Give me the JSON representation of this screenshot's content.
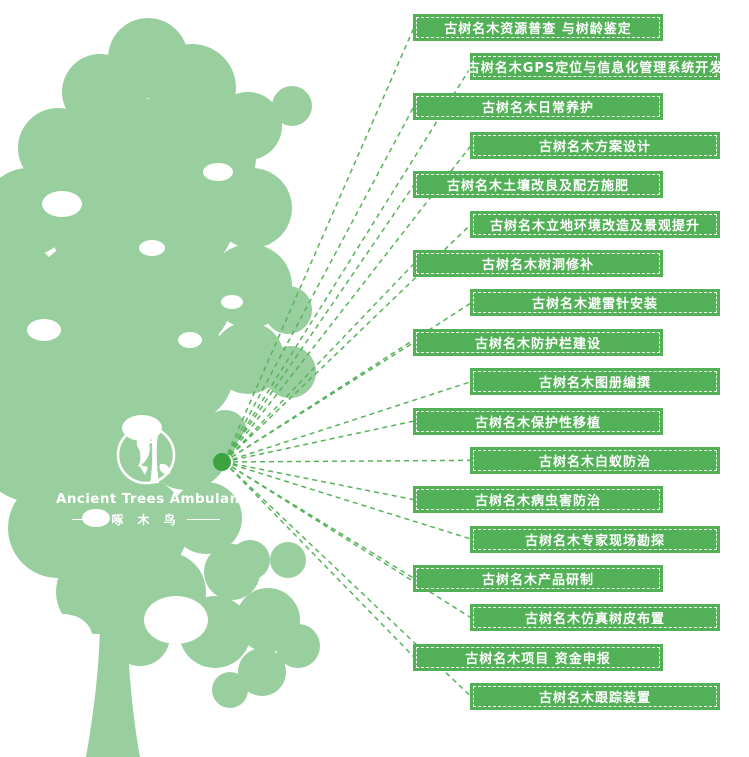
{
  "logo": {
    "title": "Ancient Trees Ambulance",
    "subtitle": "啄 木 鸟",
    "icon": "woodpecker-logo-icon"
  },
  "colors": {
    "tree_silhouette": "#99cf9f",
    "service_box": "#52b156",
    "connector_dash": "#57b35b",
    "hub_dot": "#3ca340",
    "label_text": "#ffffff"
  },
  "services": [
    "古树名木资源普查 与树龄鉴定",
    "古树名木GPS定位与信息化管理系统开发",
    "古树名木日常养护",
    "古树名木方案设计",
    "古树名木土壤改良及配方施肥",
    "古树名木立地环境改造及景观提升",
    "古树名木树洞修补",
    "古树名木避雷针安装",
    "古树名木防护栏建设",
    "古树名木图册编撰",
    "古树名木保护性移植",
    "古树名木白蚁防治",
    "古树名木病虫害防治",
    "古树名木专家现场勘探",
    "古树名木产品研制",
    "古树名木仿真树皮布置",
    "古树名木项目 资金申报",
    "古树名木跟踪装置"
  ]
}
